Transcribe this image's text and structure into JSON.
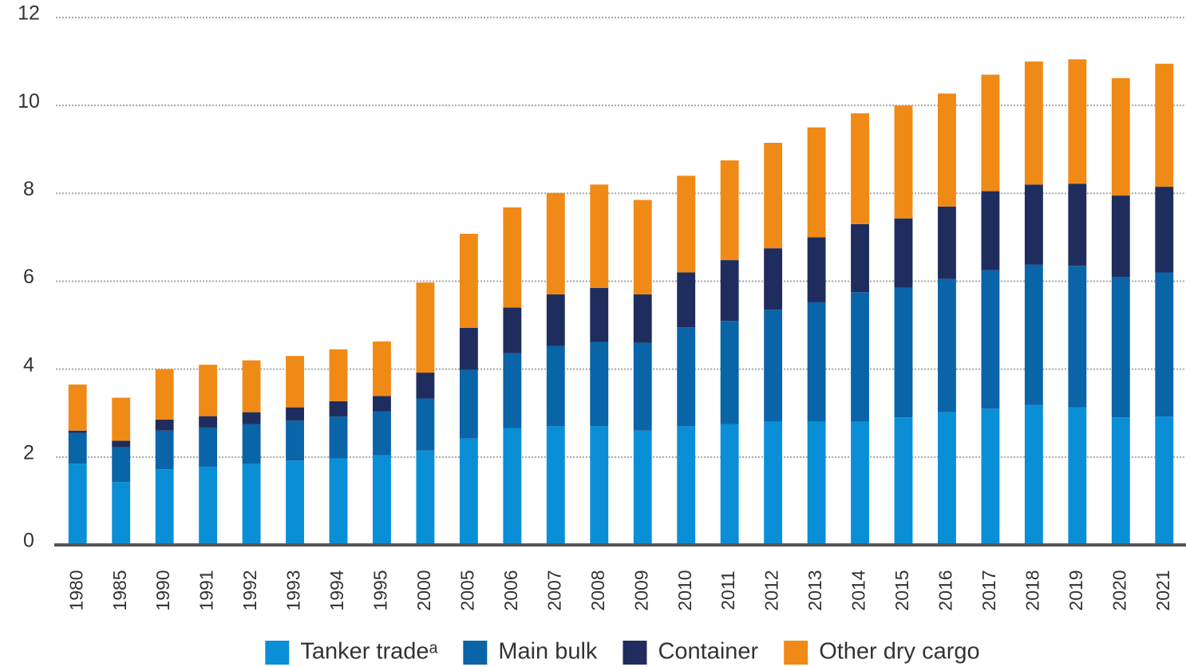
{
  "chart_data": {
    "type": "stacked_bar",
    "categories": [
      "1980",
      "1985",
      "1990",
      "1991",
      "1992",
      "1993",
      "1994",
      "1995",
      "2000",
      "2005",
      "2006",
      "2007",
      "2008",
      "2009",
      "2010",
      "2011",
      "2012",
      "2013",
      "2014",
      "2015",
      "2016",
      "2017",
      "2018",
      "2019",
      "2020",
      "2021"
    ],
    "series": [
      {
        "name": "Tanker tradeᵃ",
        "color": "#0a8fd6",
        "values": [
          1.85,
          1.43,
          1.72,
          1.78,
          1.84,
          1.92,
          1.97,
          2.04,
          2.15,
          2.42,
          2.66,
          2.7,
          2.7,
          2.6,
          2.7,
          2.75,
          2.8,
          2.8,
          2.8,
          2.9,
          3.02,
          3.1,
          3.18,
          3.13,
          2.9,
          2.92
        ]
      },
      {
        "name": "Main bulk",
        "color": "#0a64a8",
        "values": [
          0.7,
          0.79,
          0.88,
          0.89,
          0.91,
          0.91,
          0.95,
          1.0,
          1.18,
          1.56,
          1.7,
          1.83,
          1.92,
          2.0,
          2.25,
          2.35,
          2.55,
          2.72,
          2.95,
          2.95,
          3.03,
          3.15,
          3.2,
          3.22,
          3.2,
          3.28
        ]
      },
      {
        "name": "Container",
        "color": "#1f2d5e",
        "values": [
          0.05,
          0.15,
          0.25,
          0.26,
          0.27,
          0.3,
          0.35,
          0.35,
          0.59,
          0.96,
          1.04,
          1.17,
          1.23,
          1.1,
          1.25,
          1.38,
          1.4,
          1.48,
          1.55,
          1.58,
          1.65,
          1.8,
          1.82,
          1.87,
          1.85,
          1.95
        ]
      },
      {
        "name": "Other dry cargo",
        "color": "#ef8a17",
        "values": [
          1.05,
          0.98,
          1.15,
          1.17,
          1.18,
          1.17,
          1.18,
          1.24,
          2.05,
          2.14,
          2.28,
          2.31,
          2.35,
          2.15,
          2.2,
          2.27,
          2.4,
          2.5,
          2.52,
          2.57,
          2.57,
          2.65,
          2.8,
          2.83,
          2.67,
          2.8
        ]
      }
    ],
    "ylim": [
      0,
      12
    ],
    "yticks": [
      0,
      2,
      4,
      6,
      8,
      10,
      12
    ],
    "grid": true,
    "legend": "bottom"
  }
}
